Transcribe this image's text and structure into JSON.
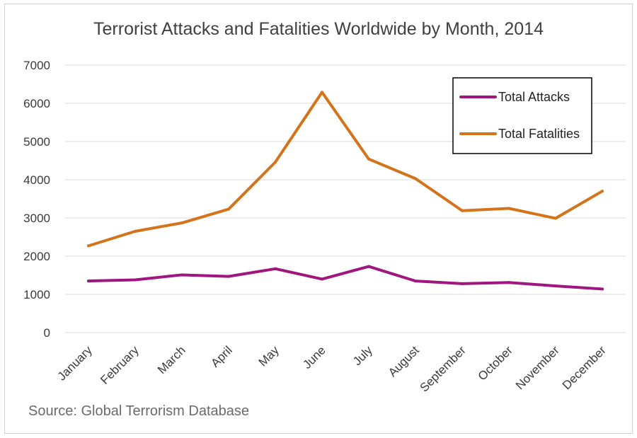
{
  "chart_data": {
    "type": "line",
    "title": "Terrorist Attacks and Fatalities Worldwide by Month, 2014",
    "categories": [
      "January",
      "February",
      "March",
      "April",
      "May",
      "June",
      "July",
      "August",
      "September",
      "October",
      "November",
      "December"
    ],
    "series": [
      {
        "name": "Total Attacks",
        "color": "#a0167f",
        "values": [
          1350,
          1380,
          1510,
          1470,
          1670,
          1400,
          1730,
          1350,
          1280,
          1310,
          1220,
          1140
        ]
      },
      {
        "name": "Total Fatalities",
        "color": "#d4731a",
        "values": [
          2270,
          2650,
          2870,
          3230,
          4460,
          6290,
          4540,
          4030,
          3190,
          3250,
          2990,
          3700
        ]
      }
    ],
    "yticks": [
      0,
      1000,
      2000,
      3000,
      4000,
      5000,
      6000,
      7000
    ],
    "ylim": [
      0,
      7000
    ],
    "xlabel": "",
    "ylabel": "",
    "grid": true,
    "legend_position": "top-right"
  },
  "source": "Source: Global Terrorism Database"
}
